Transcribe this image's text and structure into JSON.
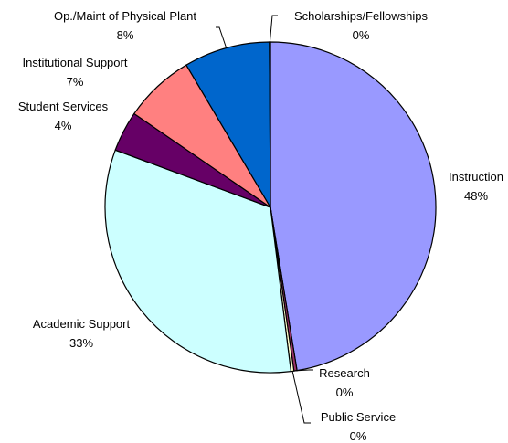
{
  "chart_data": {
    "type": "pie",
    "slices": [
      {
        "label": "Instruction",
        "pct_label": "48%",
        "value": 48,
        "color": "#9999ff"
      },
      {
        "label": "Research",
        "pct_label": "0%",
        "value": 0.3,
        "color": "#993366"
      },
      {
        "label": "Public Service",
        "pct_label": "0%",
        "value": 0.3,
        "color": "#ffffcc"
      },
      {
        "label": "Academic Support",
        "pct_label": "33%",
        "value": 33,
        "color": "#ccffff"
      },
      {
        "label": "Student Services",
        "pct_label": "4%",
        "value": 4,
        "color": "#660066"
      },
      {
        "label": "Institutional Support",
        "pct_label": "7%",
        "value": 7,
        "color": "#ff8080"
      },
      {
        "label": "Op./Maint of Physical Plant",
        "pct_label": "8%",
        "value": 8.5,
        "color": "#0066cc"
      },
      {
        "label": "Scholarships/Fellowships",
        "pct_label": "0%",
        "value": 0.1,
        "color": "#c0c0c0"
      }
    ],
    "start_angle_deg": 0,
    "direction": "clockwise",
    "legend": "none"
  }
}
